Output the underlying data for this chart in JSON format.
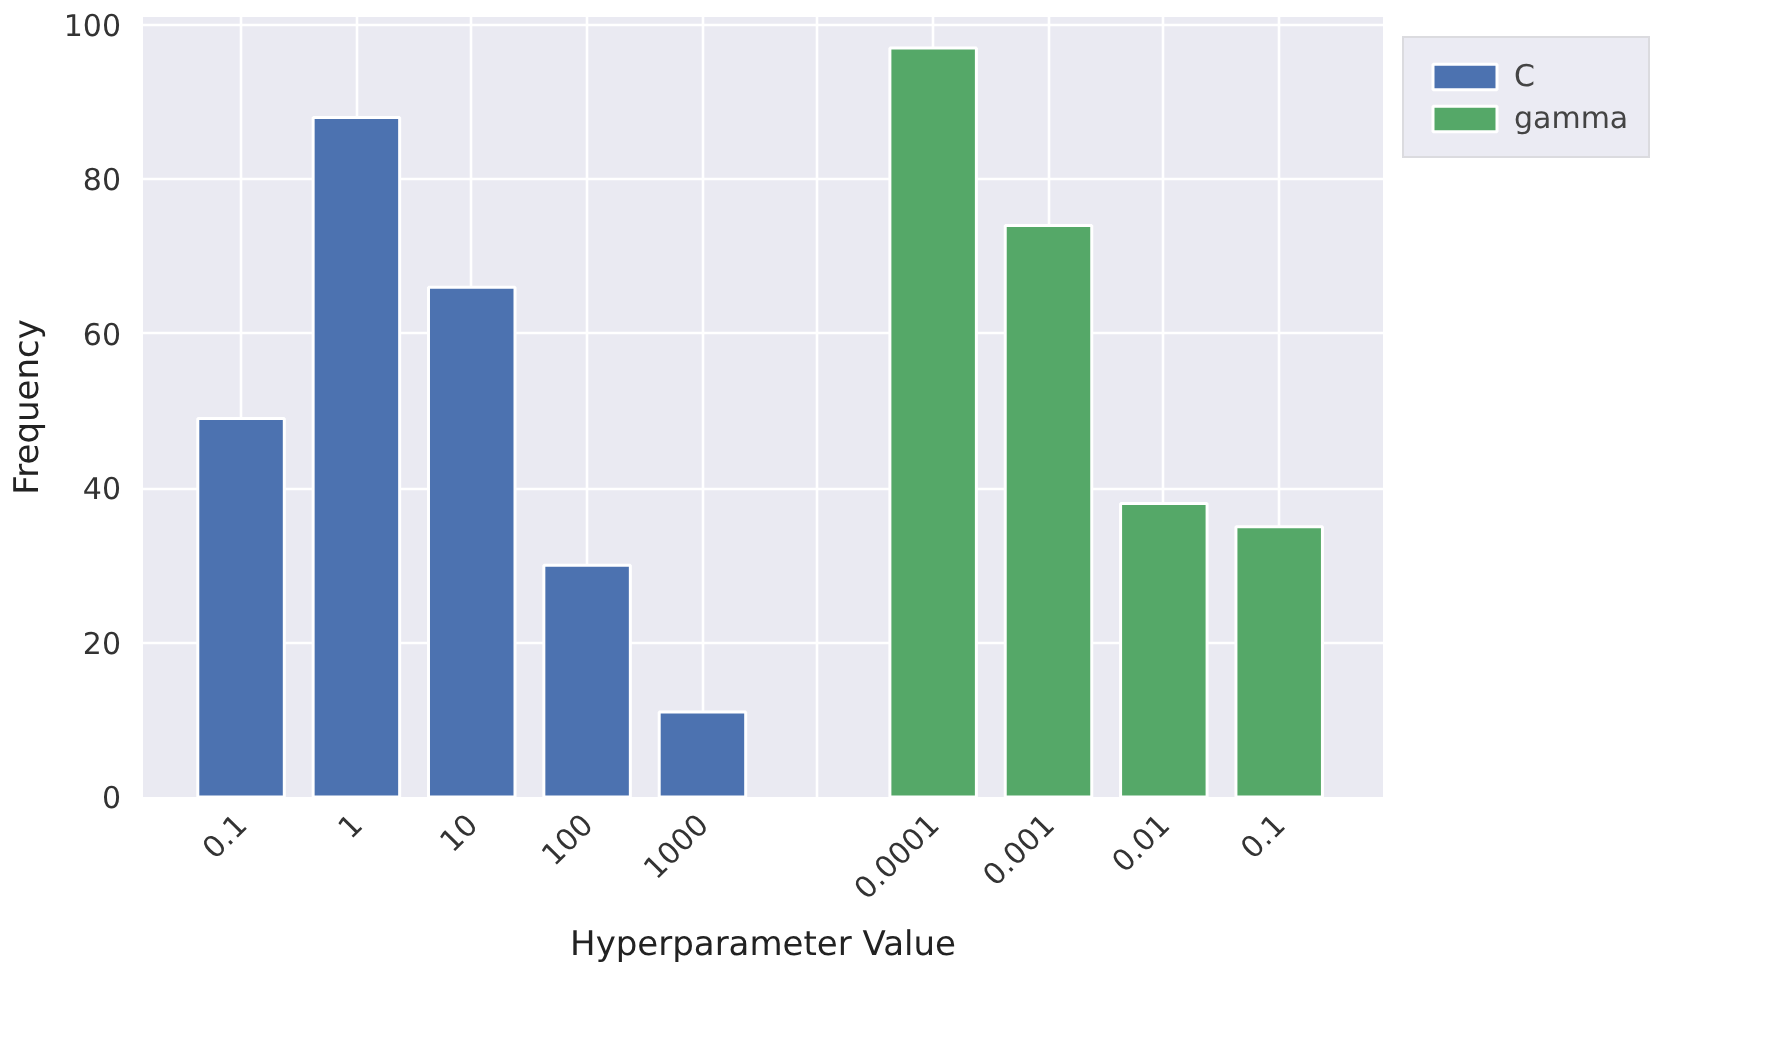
{
  "chart_data": {
    "type": "bar",
    "xlabel": "Hyperparameter Value",
    "ylabel": "Frequency",
    "categories": [
      "0.1",
      "1",
      "10",
      "100",
      "1000",
      null,
      "0.0001",
      "0.001",
      "0.01",
      "0.1"
    ],
    "series": [
      {
        "name": "C",
        "color": "#4c72b0",
        "values": [
          49,
          88,
          66,
          30,
          11,
          null,
          null,
          null,
          null,
          null
        ]
      },
      {
        "name": "gamma",
        "color": "#55a868",
        "values": [
          null,
          null,
          null,
          null,
          null,
          null,
          97,
          74,
          38,
          35
        ]
      }
    ],
    "ylim": [
      0,
      101
    ],
    "yticks": [
      0,
      20,
      40,
      60,
      80,
      100
    ],
    "grid": true,
    "legend": "top right"
  }
}
